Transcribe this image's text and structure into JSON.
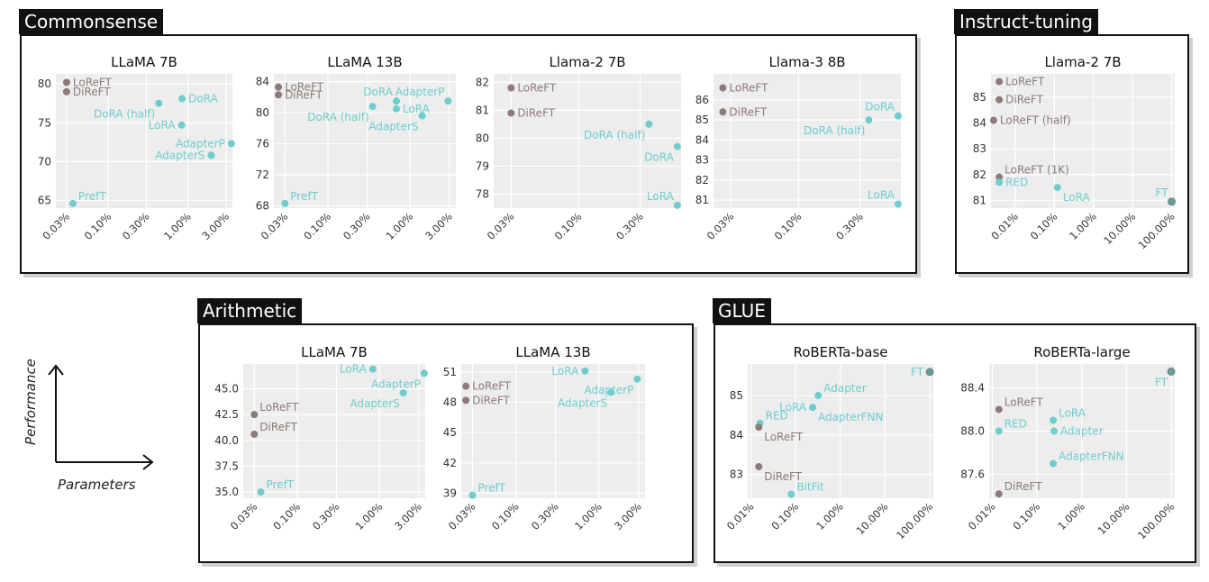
{
  "colors": {
    "reft": "#8c7b79",
    "baseline": "#6fcdcd",
    "both": "#5aa0a0",
    "panel_bg": "#ededed"
  },
  "groups": {
    "commonsense": {
      "label": "Commonsense"
    },
    "instruct": {
      "label": "Instruct-tuning"
    },
    "arithmetic": {
      "label": "Arithmetic"
    },
    "glue": {
      "label": "GLUE"
    }
  },
  "axes_legend": {
    "performance": "Performance",
    "parameters": "Parameters"
  },
  "chart_data": [
    {
      "id": "cs-llama7b",
      "group": "commonsense",
      "type": "scatter",
      "title": "LLaMA 7B",
      "x_scale": "log",
      "xlim": [
        0.022,
        3.6
      ],
      "ylim": [
        64,
        81.3
      ],
      "xticks": [
        0.03,
        0.1,
        0.3,
        1,
        3
      ],
      "xtick_labels": [
        "0.03%",
        "0.10%",
        "0.30%",
        "1.00%",
        "3.00%"
      ],
      "yticks": [
        65,
        70,
        75,
        80
      ],
      "ytick_labels": [
        "65",
        "70",
        "75",
        "80"
      ],
      "points": [
        {
          "label": "LoReFT",
          "x": 0.03,
          "y": 80.2,
          "kind": "reft",
          "anchor": "right"
        },
        {
          "label": "DiReFT",
          "x": 0.03,
          "y": 79.0,
          "kind": "reft",
          "anchor": "right"
        },
        {
          "label": "DoRA",
          "x": 0.84,
          "y": 78.1,
          "kind": "baseline",
          "anchor": "right"
        },
        {
          "label": "DoRA (half)",
          "x": 0.43,
          "y": 77.5,
          "kind": "baseline",
          "anchor": "below-left"
        },
        {
          "label": "LoRA",
          "x": 0.83,
          "y": 74.7,
          "kind": "baseline",
          "anchor": "left"
        },
        {
          "label": "AdapterP",
          "x": 3.5,
          "y": 72.3,
          "kind": "baseline",
          "anchor": "left"
        },
        {
          "label": "AdapterS",
          "x": 1.95,
          "y": 70.8,
          "kind": "baseline",
          "anchor": "left"
        },
        {
          "label": "PrefT",
          "x": 0.036,
          "y": 64.6,
          "kind": "baseline",
          "anchor": "right-up"
        }
      ]
    },
    {
      "id": "cs-llama13b",
      "group": "commonsense",
      "type": "scatter",
      "title": "LLaMA 13B",
      "x_scale": "log",
      "xlim": [
        0.022,
        3.6
      ],
      "ylim": [
        67.7,
        85
      ],
      "xticks": [
        0.03,
        0.1,
        0.3,
        1,
        3
      ],
      "xtick_labels": [
        "0.03%",
        "0.10%",
        "0.30%",
        "1.00%",
        "3.00%"
      ],
      "yticks": [
        68,
        72,
        76,
        80,
        84
      ],
      "ytick_labels": [
        "68",
        "72",
        "76",
        "80",
        "84"
      ],
      "points": [
        {
          "label": "LoReFT",
          "x": 0.025,
          "y": 83.3,
          "kind": "reft",
          "anchor": "right"
        },
        {
          "label": "DiReFT",
          "x": 0.025,
          "y": 82.3,
          "kind": "reft",
          "anchor": "right"
        },
        {
          "label": "DoRA",
          "x": 0.68,
          "y": 81.5,
          "kind": "baseline",
          "anchor": "up-left"
        },
        {
          "label": "AdapterP",
          "x": 2.9,
          "y": 81.5,
          "kind": "baseline",
          "anchor": "up-left"
        },
        {
          "label": "DoRA (half)",
          "x": 0.35,
          "y": 80.8,
          "kind": "baseline",
          "anchor": "below-left"
        },
        {
          "label": "LoRA",
          "x": 0.68,
          "y": 80.5,
          "kind": "baseline",
          "anchor": "right"
        },
        {
          "label": "AdapterS",
          "x": 1.4,
          "y": 79.6,
          "kind": "baseline",
          "anchor": "below-left"
        },
        {
          "label": "PrefT",
          "x": 0.03,
          "y": 68.3,
          "kind": "baseline",
          "anchor": "right-up"
        }
      ]
    },
    {
      "id": "cs-llama2-7b",
      "group": "commonsense",
      "type": "scatter",
      "title": "Llama-2 7B",
      "x_scale": "log",
      "xlim": [
        0.022,
        0.62
      ],
      "ylim": [
        77.5,
        82.3
      ],
      "xticks": [
        0.03,
        0.1,
        0.3
      ],
      "xtick_labels": [
        "0.03%",
        "0.10%",
        "0.30%"
      ],
      "yticks": [
        78,
        79,
        80,
        81,
        82
      ],
      "ytick_labels": [
        "78",
        "79",
        "80",
        "81",
        "82"
      ],
      "points": [
        {
          "label": "LoReFT",
          "x": 0.03,
          "y": 81.8,
          "kind": "reft",
          "anchor": "right"
        },
        {
          "label": "DiReFT",
          "x": 0.03,
          "y": 80.9,
          "kind": "reft",
          "anchor": "right"
        },
        {
          "label": "DoRA (half)",
          "x": 0.35,
          "y": 80.5,
          "kind": "baseline",
          "anchor": "below-left"
        },
        {
          "label": "DoRA",
          "x": 0.58,
          "y": 79.7,
          "kind": "baseline",
          "anchor": "below-left"
        },
        {
          "label": "LoRA",
          "x": 0.58,
          "y": 77.6,
          "kind": "baseline",
          "anchor": "up-left"
        }
      ]
    },
    {
      "id": "cs-llama3-8b",
      "group": "commonsense",
      "type": "scatter",
      "title": "Llama-3 8B",
      "x_scale": "log",
      "xlim": [
        0.022,
        0.62
      ],
      "ylim": [
        80.6,
        87.3
      ],
      "xticks": [
        0.03,
        0.1,
        0.3
      ],
      "xtick_labels": [
        "0.03%",
        "0.10%",
        "0.30%"
      ],
      "yticks": [
        81,
        82,
        83,
        84,
        85,
        86
      ],
      "ytick_labels": [
        "81",
        "82",
        "83",
        "84",
        "85",
        "86"
      ],
      "points": [
        {
          "label": "LoReFT",
          "x": 0.026,
          "y": 86.6,
          "kind": "reft",
          "anchor": "right"
        },
        {
          "label": "DiReFT",
          "x": 0.026,
          "y": 85.4,
          "kind": "reft",
          "anchor": "right"
        },
        {
          "label": "DoRA",
          "x": 0.59,
          "y": 85.2,
          "kind": "baseline",
          "anchor": "up-left"
        },
        {
          "label": "DoRA (half)",
          "x": 0.35,
          "y": 85.0,
          "kind": "baseline",
          "anchor": "below-left"
        },
        {
          "label": "LoRA",
          "x": 0.59,
          "y": 80.8,
          "kind": "baseline",
          "anchor": "up-left"
        }
      ]
    },
    {
      "id": "it-llama2-7b",
      "group": "instruct",
      "type": "scatter",
      "title": "Llama-2 7B",
      "x_scale": "log",
      "xlim": [
        0.0024,
        120
      ],
      "ylim": [
        80.7,
        85.9
      ],
      "xticks": [
        0.01,
        0.1,
        1,
        10,
        100
      ],
      "xtick_labels": [
        "0.01%",
        "0.10%",
        "1.00%",
        "10.00%",
        "100.00%"
      ],
      "yticks": [
        81,
        82,
        83,
        84,
        85
      ],
      "ytick_labels": [
        "81",
        "82",
        "83",
        "84",
        "85"
      ],
      "points": [
        {
          "label": "LoReFT",
          "x": 0.0039,
          "y": 85.6,
          "kind": "reft",
          "anchor": "right"
        },
        {
          "label": "DiReFT",
          "x": 0.0039,
          "y": 84.9,
          "kind": "reft",
          "anchor": "right"
        },
        {
          "label": "LoReFT (half)",
          "x": 0.0028,
          "y": 84.1,
          "kind": "reft",
          "anchor": "right"
        },
        {
          "label": "LoReFT (1K)",
          "x": 0.0039,
          "y": 81.9,
          "kind": "reft",
          "anchor": "right-up"
        },
        {
          "label": "RED",
          "x": 0.0039,
          "y": 81.7,
          "kind": "baseline",
          "anchor": "right"
        },
        {
          "label": "LoRA",
          "x": 0.12,
          "y": 81.5,
          "kind": "baseline",
          "anchor": "right-down"
        },
        {
          "label": "FT",
          "x": 100,
          "y": 80.95,
          "kind": "both",
          "anchor": "up-left"
        }
      ]
    },
    {
      "id": "ar-llama7b",
      "group": "arithmetic",
      "type": "scatter",
      "title": "LLaMA 7B",
      "x_scale": "log",
      "xlim": [
        0.022,
        3.6
      ],
      "ylim": [
        34.4,
        47.4
      ],
      "xticks": [
        0.03,
        0.1,
        0.3,
        1,
        3
      ],
      "xtick_labels": [
        "0.03%",
        "0.10%",
        "0.30%",
        "1.00%",
        "3.00%"
      ],
      "yticks": [
        35,
        37.5,
        40,
        42.5,
        45
      ],
      "ytick_labels": [
        "35.0",
        "37.5",
        "40.0",
        "42.5",
        "45.0"
      ],
      "points": [
        {
          "label": "LoRA",
          "x": 0.83,
          "y": 46.9,
          "kind": "baseline",
          "anchor": "left"
        },
        {
          "label": "AdapterP",
          "x": 3.5,
          "y": 46.5,
          "kind": "baseline",
          "anchor": "below-left"
        },
        {
          "label": "AdapterS",
          "x": 1.95,
          "y": 44.6,
          "kind": "baseline",
          "anchor": "below-left"
        },
        {
          "label": "LoReFT",
          "x": 0.03,
          "y": 42.5,
          "kind": "reft",
          "anchor": "right-up"
        },
        {
          "label": "DiReFT",
          "x": 0.03,
          "y": 40.6,
          "kind": "reft",
          "anchor": "right-up"
        },
        {
          "label": "PrefT",
          "x": 0.036,
          "y": 35.0,
          "kind": "baseline",
          "anchor": "right-up"
        }
      ]
    },
    {
      "id": "ar-llama13b",
      "group": "arithmetic",
      "type": "scatter",
      "title": "LLaMA 13B",
      "x_scale": "log",
      "xlim": [
        0.022,
        3.6
      ],
      "ylim": [
        38.5,
        51.8
      ],
      "xticks": [
        0.03,
        0.1,
        0.3,
        1,
        3
      ],
      "xtick_labels": [
        "0.03%",
        "0.10%",
        "0.30%",
        "1.00%",
        "3.00%"
      ],
      "yticks": [
        39,
        42,
        45,
        48,
        51
      ],
      "ytick_labels": [
        "39",
        "42",
        "45",
        "48",
        "51"
      ],
      "points": [
        {
          "label": "LoRA",
          "x": 0.68,
          "y": 51.1,
          "kind": "baseline",
          "anchor": "left"
        },
        {
          "label": "AdapterP",
          "x": 2.9,
          "y": 50.3,
          "kind": "baseline",
          "anchor": "below-left"
        },
        {
          "label": "AdapterS",
          "x": 1.4,
          "y": 49.0,
          "kind": "baseline",
          "anchor": "below-left"
        },
        {
          "label": "LoReFT",
          "x": 0.025,
          "y": 49.6,
          "kind": "reft",
          "anchor": "right"
        },
        {
          "label": "DiReFT",
          "x": 0.025,
          "y": 48.2,
          "kind": "reft",
          "anchor": "right"
        },
        {
          "label": "PrefT",
          "x": 0.03,
          "y": 38.8,
          "kind": "baseline",
          "anchor": "right-up"
        }
      ]
    },
    {
      "id": "glue-roberta-base",
      "group": "glue",
      "type": "scatter",
      "title": "RoBERTa-base",
      "x_scale": "log",
      "xlim": [
        0.0085,
        120
      ],
      "ylim": [
        82.4,
        85.8
      ],
      "xticks": [
        0.01,
        0.1,
        1,
        10,
        100
      ],
      "xtick_labels": [
        "0.01%",
        "0.10%",
        "1.00%",
        "10.00%",
        "100.00%"
      ],
      "yticks": [
        83,
        84,
        85
      ],
      "ytick_labels": [
        "83",
        "84",
        "85"
      ],
      "points": [
        {
          "label": "FT",
          "x": 100,
          "y": 85.6,
          "kind": "both",
          "anchor": "left"
        },
        {
          "label": "Adapter",
          "x": 0.32,
          "y": 85.0,
          "kind": "baseline",
          "anchor": "right-up"
        },
        {
          "label": "LoRA",
          "x": 0.24,
          "y": 84.7,
          "kind": "baseline",
          "anchor": "left"
        },
        {
          "label": "AdapterFNN",
          "x": 0.24,
          "y": 84.7,
          "kind": "baseline",
          "anchor": "right-down"
        },
        {
          "label": "RED",
          "x": 0.016,
          "y": 84.3,
          "kind": "baseline",
          "anchor": "right-up"
        },
        {
          "label": "LoReFT",
          "x": 0.015,
          "y": 84.2,
          "kind": "reft",
          "anchor": "right-down"
        },
        {
          "label": "DiReFT",
          "x": 0.015,
          "y": 83.2,
          "kind": "reft",
          "anchor": "right-down"
        },
        {
          "label": "BitFit",
          "x": 0.08,
          "y": 82.5,
          "kind": "baseline",
          "anchor": "right-up"
        }
      ]
    },
    {
      "id": "glue-roberta-large",
      "group": "glue",
      "type": "scatter",
      "title": "RoBERTa-large",
      "x_scale": "log",
      "xlim": [
        0.0085,
        120
      ],
      "ylim": [
        87.38,
        88.62
      ],
      "xticks": [
        0.01,
        0.1,
        1,
        10,
        100
      ],
      "xtick_labels": [
        "0.01%",
        "0.10%",
        "1.00%",
        "10.00%",
        "100.00%"
      ],
      "yticks": [
        87.6,
        88.0,
        88.4
      ],
      "ytick_labels": [
        "87.6",
        "88.0",
        "88.4"
      ],
      "points": [
        {
          "label": "FT",
          "x": 100,
          "y": 88.55,
          "kind": "both",
          "anchor": "below-left"
        },
        {
          "label": "LoReFT",
          "x": 0.014,
          "y": 88.2,
          "kind": "reft",
          "anchor": "right-up"
        },
        {
          "label": "LoRA",
          "x": 0.23,
          "y": 88.1,
          "kind": "baseline",
          "anchor": "right-up"
        },
        {
          "label": "RED",
          "x": 0.014,
          "y": 88.0,
          "kind": "baseline",
          "anchor": "right-up"
        },
        {
          "label": "Adapter",
          "x": 0.24,
          "y": 88.0,
          "kind": "baseline",
          "anchor": "right"
        },
        {
          "label": "AdapterFNN",
          "x": 0.23,
          "y": 87.7,
          "kind": "baseline",
          "anchor": "right-up"
        },
        {
          "label": "DiReFT",
          "x": 0.014,
          "y": 87.42,
          "kind": "reft",
          "anchor": "right-up"
        }
      ]
    }
  ]
}
